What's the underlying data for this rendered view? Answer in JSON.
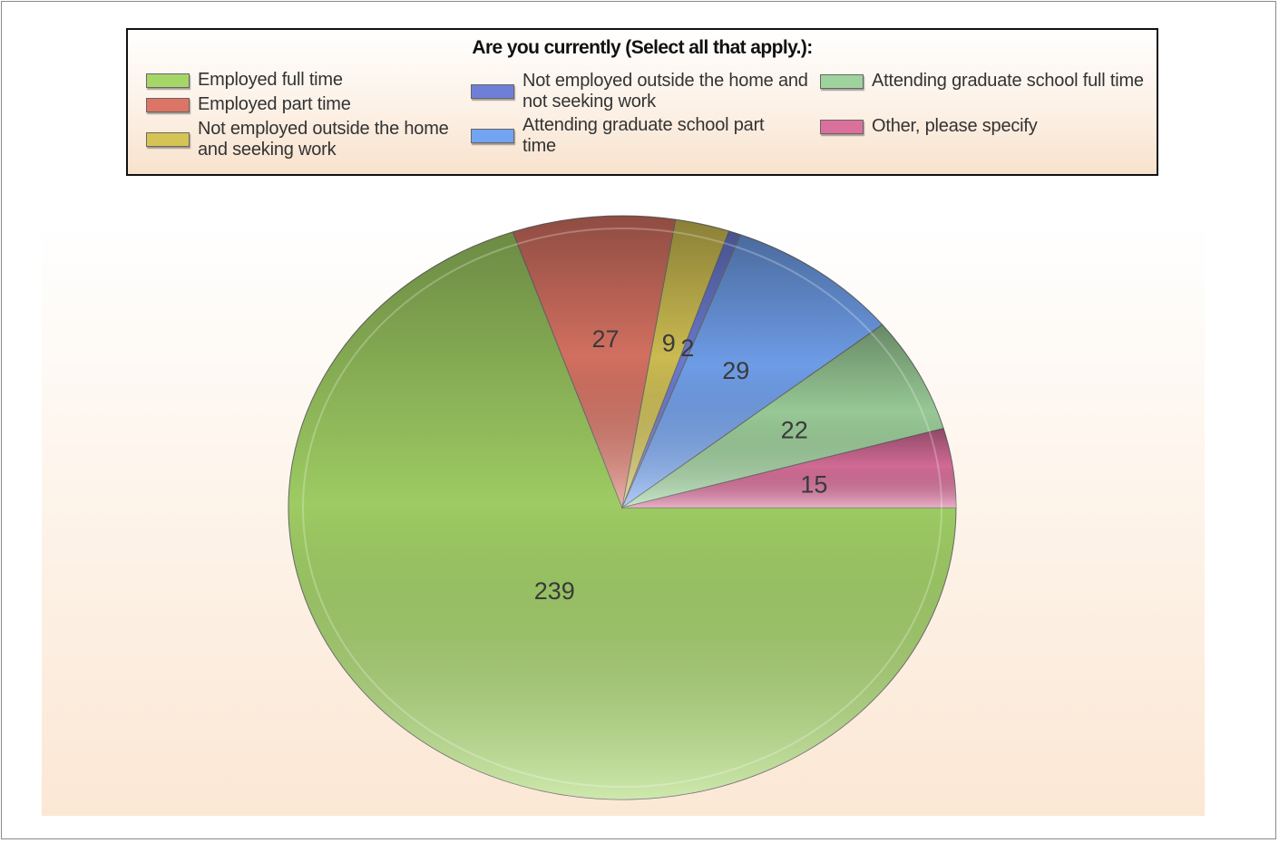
{
  "chart_data": {
    "type": "pie",
    "title": "Are you currently (Select all that apply.):",
    "categories": [
      "Employed full time",
      "Employed part time",
      "Not employed outside the home and seeking work",
      "Not employed outside the home and not seeking work",
      "Attending graduate school part time",
      "Attending graduate school full time",
      "Other, please specify"
    ],
    "values": [
      239,
      27,
      9,
      2,
      29,
      22,
      15
    ],
    "colors": [
      "#a6d668",
      "#dc7565",
      "#d5c455",
      "#6f7fd8",
      "#73a4f2",
      "#9fd39d",
      "#dc709c"
    ],
    "legend_position": "top",
    "legend_columns": 3
  },
  "legend": {
    "title": "Are you currently (Select all that apply.):",
    "items": [
      {
        "label": "Employed full time",
        "color": "#a6d668"
      },
      {
        "label": "Employed part time",
        "color": "#dc7565"
      },
      {
        "label": "Not employed outside the home and seeking work",
        "color": "#d5c455"
      },
      {
        "label": "Not employed outside the home and not seeking work",
        "color": "#6f7fd8"
      },
      {
        "label": "Attending graduate school part time",
        "color": "#73a4f2"
      },
      {
        "label": "Attending graduate school full time",
        "color": "#9fd39d"
      },
      {
        "label": "Other, please specify",
        "color": "#dc709c"
      }
    ]
  }
}
